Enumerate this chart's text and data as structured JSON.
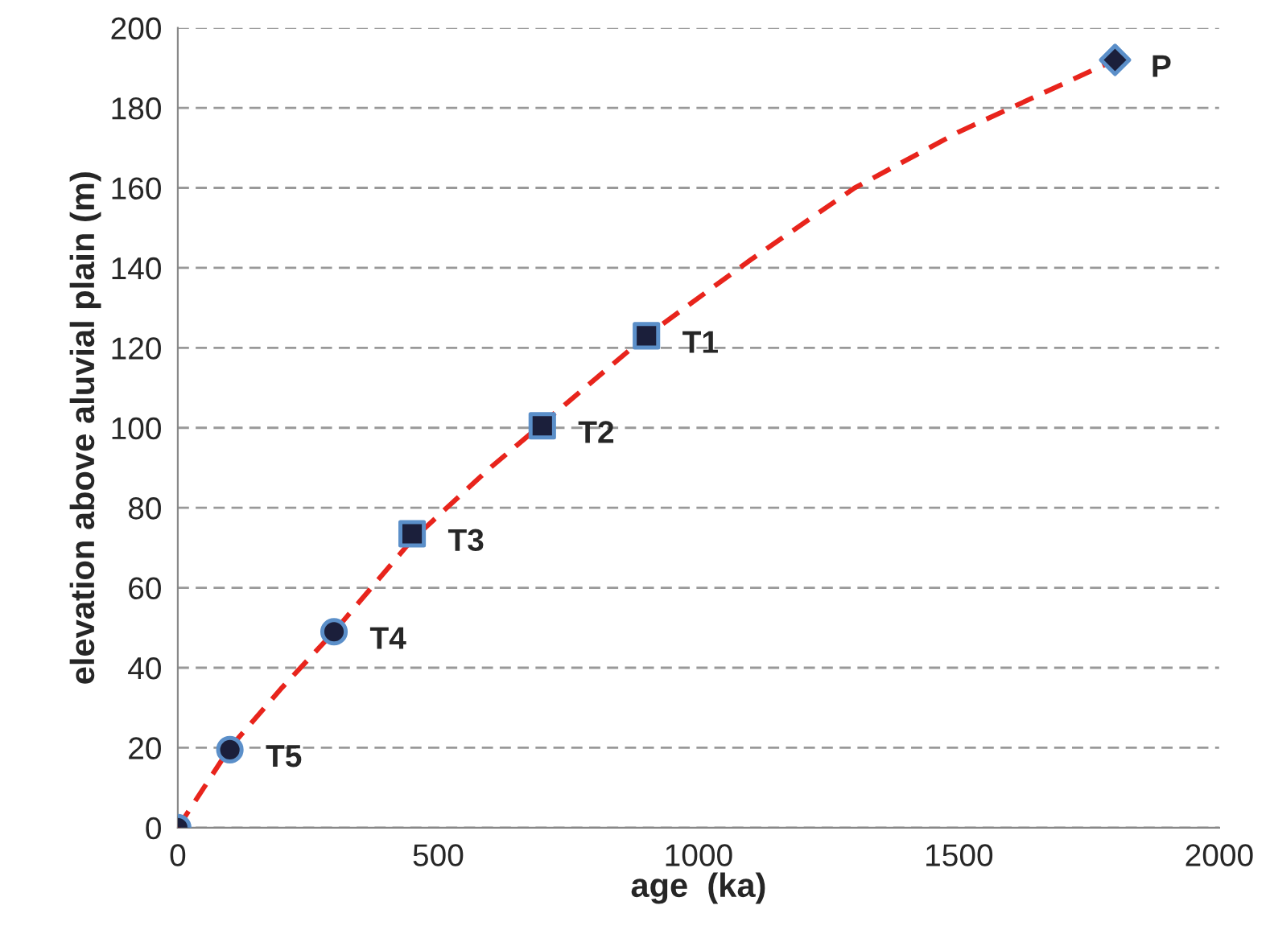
{
  "chart_data": {
    "type": "scatter",
    "xlabel": "age  (ka)",
    "ylabel": "elevation above aluvial plain (m)",
    "xlim": [
      0,
      2000
    ],
    "xticks": [
      0,
      500,
      1000,
      1500,
      2000
    ],
    "ylim": [
      0,
      200
    ],
    "yticks": [
      0,
      20,
      40,
      60,
      80,
      100,
      120,
      140,
      160,
      180,
      200
    ],
    "grid": "y",
    "series": [
      {
        "type": "line",
        "color": "#e8241c",
        "line_style": "dashed",
        "marker": "none",
        "x": [
          0,
          100,
          200,
          300,
          450,
          600,
          700,
          900,
          1100,
          1300,
          1500,
          1800
        ],
        "values": [
          0,
          20,
          35,
          49,
          72,
          90,
          101,
          123,
          142,
          160,
          174,
          192
        ]
      },
      {
        "color": "#1b1f3b",
        "marker": "circle",
        "x": [
          0,
          100,
          300
        ],
        "values": [
          0,
          19.5,
          49
        ]
      },
      {
        "color": "#1b1f3b",
        "marker": "square",
        "x": [
          450,
          700,
          900
        ],
        "values": [
          73.5,
          100.5,
          123
        ]
      },
      {
        "color": "#1b1f3b",
        "marker": "diamond",
        "x": [
          1800
        ],
        "values": [
          192
        ]
      }
    ],
    "annotations": [
      {
        "text": "T5",
        "x": 100,
        "y": 19.5
      },
      {
        "text": "T4",
        "x": 300,
        "y": 49
      },
      {
        "text": "T3",
        "x": 450,
        "y": 73.5
      },
      {
        "text": "T2",
        "x": 700,
        "y": 100.5
      },
      {
        "text": "T1",
        "x": 900,
        "y": 123
      },
      {
        "text": "P",
        "x": 1800,
        "y": 192
      }
    ]
  }
}
